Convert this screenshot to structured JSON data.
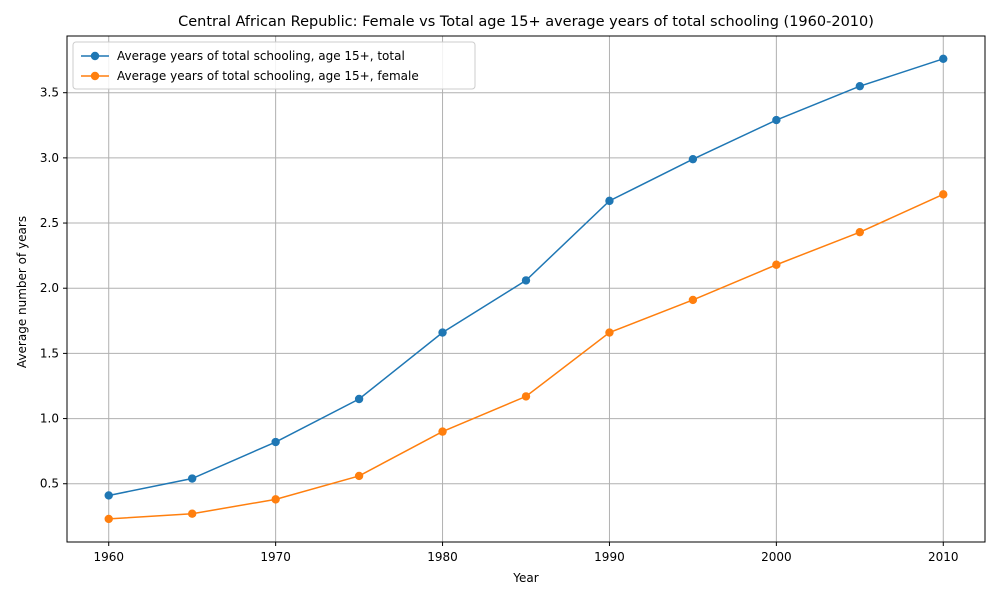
{
  "chart_data": {
    "type": "line",
    "title": "Central African Republic: Female vs Total age 15+ average years of total schooling (1960-2010)",
    "xlabel": "Year",
    "ylabel": "Average number of years",
    "x": [
      1960,
      1965,
      1970,
      1975,
      1980,
      1985,
      1990,
      1995,
      2000,
      2005,
      2010
    ],
    "xlim": [
      1957.5,
      2012.5
    ],
    "ylim": [
      0.053,
      3.935
    ],
    "xticks": [
      1960,
      1970,
      1980,
      1990,
      2000,
      2010
    ],
    "yticks": [
      0.5,
      1.0,
      1.5,
      2.0,
      2.5,
      3.0,
      3.5
    ],
    "ytick_labels": [
      "0.5",
      "1.0",
      "1.5",
      "2.0",
      "2.5",
      "3.0",
      "3.5"
    ],
    "grid": true,
    "legend_position": "top-left",
    "series": [
      {
        "name": "Average years of total schooling, age 15+, total",
        "color": "#1f77b4",
        "values": [
          0.41,
          0.54,
          0.82,
          1.15,
          1.66,
          2.06,
          2.67,
          2.99,
          3.29,
          3.55,
          3.76
        ]
      },
      {
        "name": "Average years of total schooling, age 15+, female",
        "color": "#ff7f0e",
        "values": [
          0.23,
          0.27,
          0.38,
          0.56,
          0.9,
          1.17,
          1.66,
          1.91,
          2.18,
          2.43,
          2.72
        ]
      }
    ]
  }
}
